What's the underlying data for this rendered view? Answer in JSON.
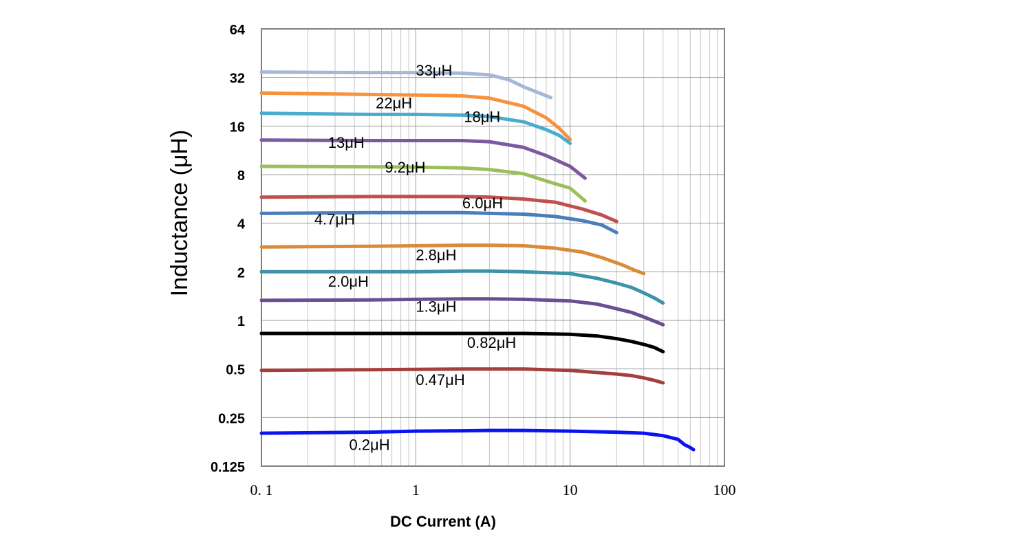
{
  "chart_data": {
    "type": "line",
    "title": "",
    "xlabel": "DC Current (A)",
    "ylabel": "Inductance (μH)",
    "xscale": "log",
    "yscale": "log2",
    "xlim": [
      0.1,
      100
    ],
    "ylim": [
      0.125,
      64
    ],
    "grid": true,
    "legend": "inline-labels",
    "x_ticks": [
      {
        "value": 0.1,
        "label": "0. 1"
      },
      {
        "value": 1,
        "label": "1"
      },
      {
        "value": 10,
        "label": "10"
      },
      {
        "value": 100,
        "label": "100"
      }
    ],
    "y_ticks": [
      {
        "value": 0.125,
        "label": "0.125"
      },
      {
        "value": 0.25,
        "label": "0.25"
      },
      {
        "value": 0.5,
        "label": "0.5"
      },
      {
        "value": 1,
        "label": "1"
      },
      {
        "value": 2,
        "label": "2"
      },
      {
        "value": 4,
        "label": "4"
      },
      {
        "value": 8,
        "label": "8"
      },
      {
        "value": 16,
        "label": "16"
      },
      {
        "value": 32,
        "label": "32"
      },
      {
        "value": 64,
        "label": "64"
      }
    ],
    "series": [
      {
        "name": "33μH",
        "color": "#a5b8d6",
        "label_at": [
          1.0,
          35.5
        ],
        "x": [
          0.1,
          0.5,
          1,
          2,
          3,
          4,
          5,
          7.5
        ],
        "y": [
          34.6,
          34.3,
          34.3,
          34.0,
          33.2,
          31.0,
          28.0,
          24.0
        ]
      },
      {
        "name": "22μH",
        "color": "#f7923e",
        "label_at": [
          0.55,
          22.3
        ],
        "x": [
          0.1,
          0.5,
          1,
          2,
          3,
          5,
          7,
          8.5,
          10
        ],
        "y": [
          25.6,
          25.1,
          24.9,
          24.6,
          23.8,
          21.2,
          18.0,
          15.5,
          13.2
        ]
      },
      {
        "name": "18μH",
        "color": "#4aaccf",
        "label_at": [
          2.05,
          18.3
        ],
        "x": [
          0.1,
          0.5,
          1,
          2,
          3,
          5,
          7,
          8.5,
          10
        ],
        "y": [
          19.2,
          18.9,
          18.9,
          18.7,
          18.3,
          17.0,
          15.2,
          14.0,
          12.5
        ]
      },
      {
        "name": "13μH",
        "color": "#7b5a9e",
        "label_at": [
          0.27,
          12.7
        ],
        "x": [
          0.1,
          0.5,
          1,
          2,
          3,
          5,
          7,
          10,
          12.5
        ],
        "y": [
          13.1,
          13.0,
          13.0,
          13.0,
          12.8,
          11.8,
          10.5,
          9.0,
          7.6
        ]
      },
      {
        "name": "9.2μH",
        "color": "#9bc05a",
        "label_at": [
          0.63,
          8.9
        ],
        "x": [
          0.1,
          0.5,
          1,
          2,
          3,
          5,
          7,
          10,
          12.5
        ],
        "y": [
          9.0,
          8.95,
          8.9,
          8.8,
          8.6,
          8.1,
          7.3,
          6.6,
          5.5
        ]
      },
      {
        "name": "6.0μH",
        "color": "#c0504d",
        "label_at": [
          2.0,
          5.35
        ],
        "x": [
          0.1,
          0.5,
          1,
          2,
          3,
          5,
          8,
          12,
          16,
          20
        ],
        "y": [
          5.8,
          5.85,
          5.85,
          5.85,
          5.8,
          5.65,
          5.4,
          4.9,
          4.5,
          4.1
        ]
      },
      {
        "name": "4.7μH",
        "color": "#4a7ebb",
        "label_at": [
          0.22,
          4.25
        ],
        "x": [
          0.1,
          0.5,
          1,
          2,
          3,
          5,
          8,
          12,
          16,
          20
        ],
        "y": [
          4.6,
          4.65,
          4.65,
          4.65,
          4.6,
          4.55,
          4.4,
          4.15,
          3.9,
          3.5
        ]
      },
      {
        "name": "2.8μH",
        "color": "#d98b3a",
        "label_at": [
          1.0,
          2.55
        ],
        "x": [
          0.1,
          0.5,
          1,
          2,
          3,
          5,
          8,
          12,
          16,
          22,
          26,
          30
        ],
        "y": [
          2.85,
          2.88,
          2.9,
          2.92,
          2.92,
          2.9,
          2.8,
          2.65,
          2.45,
          2.2,
          2.05,
          1.95
        ]
      },
      {
        "name": "2.0μH",
        "color": "#3d93a8",
        "label_at": [
          0.27,
          1.75
        ],
        "x": [
          0.1,
          0.5,
          1,
          2,
          3,
          5,
          10,
          15,
          20,
          25,
          30,
          35,
          40
        ],
        "y": [
          2.0,
          2.0,
          2.0,
          2.02,
          2.02,
          2.0,
          1.95,
          1.82,
          1.7,
          1.6,
          1.48,
          1.38,
          1.28
        ]
      },
      {
        "name": "1.3μH",
        "color": "#6a4e90",
        "label_at": [
          1.0,
          1.22
        ],
        "x": [
          0.1,
          0.5,
          1,
          2,
          3,
          5,
          10,
          15,
          20,
          25,
          30,
          35,
          40
        ],
        "y": [
          1.33,
          1.34,
          1.35,
          1.36,
          1.36,
          1.35,
          1.32,
          1.26,
          1.18,
          1.12,
          1.05,
          0.99,
          0.94
        ]
      },
      {
        "name": "0.82μH",
        "color": "#000000",
        "label_at": [
          2.15,
          0.73
        ],
        "x": [
          0.1,
          0.5,
          1,
          2,
          3,
          5,
          10,
          15,
          20,
          25,
          30,
          35,
          40
        ],
        "y": [
          0.83,
          0.83,
          0.83,
          0.83,
          0.83,
          0.83,
          0.82,
          0.8,
          0.77,
          0.74,
          0.71,
          0.68,
          0.64
        ]
      },
      {
        "name": "0.47μH",
        "color": "#a3403d",
        "label_at": [
          1.0,
          0.43
        ],
        "x": [
          0.1,
          0.5,
          1,
          2,
          3,
          5,
          10,
          15,
          20,
          25,
          30,
          35,
          40
        ],
        "y": [
          0.49,
          0.495,
          0.497,
          0.5,
          0.5,
          0.5,
          0.49,
          0.475,
          0.465,
          0.455,
          0.44,
          0.425,
          0.41
        ]
      },
      {
        "name": "0.2μH",
        "color": "#0b14f0",
        "label_at": [
          0.37,
          0.17
        ],
        "x": [
          0.1,
          0.5,
          1,
          2,
          3,
          5,
          10,
          20,
          30,
          40,
          50,
          55,
          60,
          63
        ],
        "y": [
          0.2,
          0.203,
          0.206,
          0.207,
          0.208,
          0.208,
          0.206,
          0.203,
          0.2,
          0.193,
          0.183,
          0.17,
          0.163,
          0.158
        ]
      }
    ]
  }
}
